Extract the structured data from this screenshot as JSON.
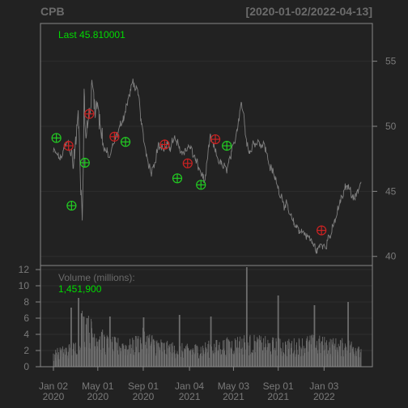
{
  "chart_data": {
    "type": "line",
    "symbol": "CPB",
    "date_range_label": "[2020-01-02/2022-04-13]",
    "last_label": "Last 45.810001",
    "price_axis": {
      "ticks": [
        40,
        45,
        50,
        55
      ],
      "ylim": [
        39.3,
        57.9
      ]
    },
    "volume_axis": {
      "label": "Volume (millions):",
      "last_value": "1,451,900",
      "ticks": [
        0,
        2,
        4,
        6,
        8,
        10,
        12
      ],
      "ylim": [
        0,
        12.5
      ]
    },
    "x_ticks": [
      {
        "line1": "Jan 02",
        "line2": "2020",
        "date": "2020-01-02"
      },
      {
        "line1": "May 01",
        "line2": "2020",
        "date": "2020-05-01"
      },
      {
        "line1": "Sep 01",
        "line2": "2020",
        "date": "2020-09-01"
      },
      {
        "line1": "Jan 04",
        "line2": "2021",
        "date": "2021-01-04"
      },
      {
        "line1": "May 03",
        "line2": "2021",
        "date": "2021-05-03"
      },
      {
        "line1": "Sep 01",
        "line2": "2021",
        "date": "2021-09-01"
      },
      {
        "line1": "Jan 03",
        "line2": "2022",
        "date": "2022-01-03"
      }
    ],
    "price_series": {
      "name": "CPB",
      "points": [
        [
          "2020-01-02",
          48.0
        ],
        [
          "2020-01-21",
          47.5
        ],
        [
          "2020-02-10",
          48.8
        ],
        [
          "2020-02-25",
          47.2
        ],
        [
          "2020-03-09",
          50.5
        ],
        [
          "2020-03-16",
          46.0
        ],
        [
          "2020-03-20",
          43.5
        ],
        [
          "2020-03-25",
          52.0
        ],
        [
          "2020-03-31",
          49.0
        ],
        [
          "2020-04-15",
          53.0
        ],
        [
          "2020-05-01",
          51.5
        ],
        [
          "2020-05-18",
          48.5
        ],
        [
          "2020-06-01",
          47.5
        ],
        [
          "2020-06-17",
          49.0
        ],
        [
          "2020-07-01",
          50.0
        ],
        [
          "2020-07-20",
          51.8
        ],
        [
          "2020-08-05",
          53.5
        ],
        [
          "2020-08-20",
          52.0
        ],
        [
          "2020-09-01",
          49.0
        ],
        [
          "2020-09-22",
          46.5
        ],
        [
          "2020-10-12",
          48.5
        ],
        [
          "2020-11-02",
          48.2
        ],
        [
          "2020-11-23",
          49.0
        ],
        [
          "2020-12-14",
          48.0
        ],
        [
          "2021-01-04",
          48.5
        ],
        [
          "2021-01-25",
          47.0
        ],
        [
          "2021-02-15",
          45.8
        ],
        [
          "2021-03-01",
          49.0
        ],
        [
          "2021-03-22",
          47.5
        ],
        [
          "2021-04-12",
          46.5
        ],
        [
          "2021-05-03",
          48.2
        ],
        [
          "2021-05-24",
          52.0
        ],
        [
          "2021-06-14",
          48.0
        ],
        [
          "2021-07-05",
          49.0
        ],
        [
          "2021-07-26",
          48.5
        ],
        [
          "2021-08-09",
          47.0
        ],
        [
          "2021-08-30",
          45.5
        ],
        [
          "2021-09-20",
          44.0
        ],
        [
          "2021-10-11",
          42.5
        ],
        [
          "2021-11-01",
          42.0
        ],
        [
          "2021-11-22",
          41.5
        ],
        [
          "2021-12-13",
          40.5
        ],
        [
          "2022-01-03",
          41.0
        ],
        [
          "2022-01-24",
          41.8
        ],
        [
          "2022-02-14",
          44.0
        ],
        [
          "2022-03-07",
          45.5
        ],
        [
          "2022-03-28",
          44.5
        ],
        [
          "2022-04-13",
          45.81
        ]
      ]
    },
    "markers": [
      {
        "date": "2020-01-10",
        "price": 49.1,
        "kind": "buy"
      },
      {
        "date": "2020-02-12",
        "price": 48.5,
        "kind": "sell"
      },
      {
        "date": "2020-02-20",
        "price": 43.9,
        "kind": "buy"
      },
      {
        "date": "2020-04-08",
        "price": 50.95,
        "kind": "sell"
      },
      {
        "date": "2020-03-27",
        "price": 47.2,
        "kind": "buy"
      },
      {
        "date": "2020-06-15",
        "price": 49.2,
        "kind": "sell"
      },
      {
        "date": "2020-07-15",
        "price": 48.8,
        "kind": "buy"
      },
      {
        "date": "2020-10-29",
        "price": 48.6,
        "kind": "sell"
      },
      {
        "date": "2020-12-02",
        "price": 46.0,
        "kind": "buy"
      },
      {
        "date": "2020-12-30",
        "price": 47.15,
        "kind": "sell"
      },
      {
        "date": "2021-02-04",
        "price": 45.5,
        "kind": "buy"
      },
      {
        "date": "2021-03-15",
        "price": 49.0,
        "kind": "sell"
      },
      {
        "date": "2021-04-15",
        "price": 48.5,
        "kind": "buy"
      },
      {
        "date": "2021-12-27",
        "price": 42.0,
        "kind": "sell"
      }
    ],
    "volume_profile": [
      [
        "2020-01-02",
        1.6
      ],
      [
        "2020-03-01",
        2.4
      ],
      [
        "2020-03-20",
        5.5
      ],
      [
        "2020-04-20",
        4.3
      ],
      [
        "2020-06-01",
        2.8
      ],
      [
        "2020-08-01",
        2.6
      ],
      [
        "2020-09-01",
        3.6
      ],
      [
        "2020-11-01",
        2.4
      ],
      [
        "2021-01-01",
        2.1
      ],
      [
        "2021-04-01",
        2.6
      ],
      [
        "2021-06-01",
        3.1
      ],
      [
        "2021-08-01",
        2.8
      ],
      [
        "2021-10-01",
        2.6
      ],
      [
        "2021-12-01",
        3.0
      ],
      [
        "2022-02-01",
        2.7
      ],
      [
        "2022-04-13",
        2.5
      ]
    ],
    "volume_spikes": [
      [
        "2020-02-19",
        7.3
      ],
      [
        "2020-03-10",
        8.5
      ],
      [
        "2020-03-18",
        6.6
      ],
      [
        "2020-04-02",
        6.0
      ],
      [
        "2020-06-03",
        6.2
      ],
      [
        "2020-09-02",
        6.1
      ],
      [
        "2020-12-08",
        6.4
      ],
      [
        "2021-03-03",
        6.2
      ],
      [
        "2021-06-08",
        12.3
      ],
      [
        "2021-09-01",
        8.8
      ],
      [
        "2021-12-08",
        7.6
      ],
      [
        "2022-03-09",
        8.0
      ]
    ],
    "colors": {
      "background": "#222222",
      "panel_border": "#888888",
      "grid": "#2e2e2e",
      "axis_text": "#7a7a7a",
      "title_text": "#6b6b6b",
      "price_line": "#7f7f7f",
      "volume_bar": "#6e6e6e",
      "last_text": "#00dd00",
      "buy_marker": "#22cc22",
      "sell_marker": "#cc2222"
    },
    "grid": true
  }
}
